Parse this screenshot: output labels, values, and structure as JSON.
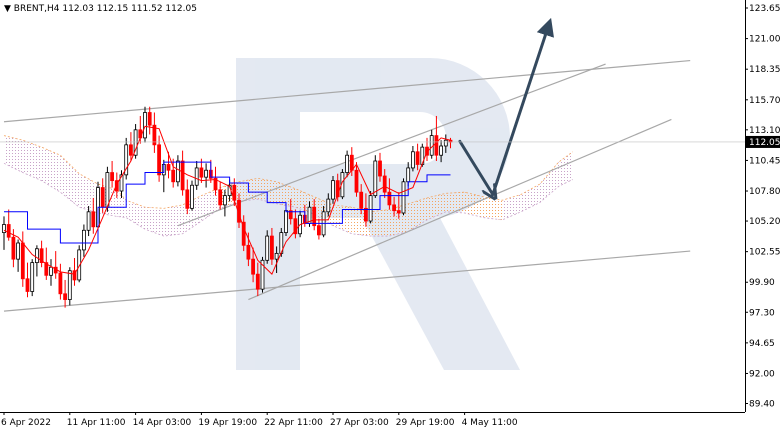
{
  "header": {
    "triangle_icon": "down-triangle-icon",
    "symbol": "BRENT,H4",
    "ohlc": "112.03 112.15 111.52 112.05"
  },
  "watermark_icon": "r-logo-watermark",
  "colors": {
    "bull": "#000000",
    "bear": "#ff0000",
    "tenkan": "#ff0000",
    "kijun": "#0000ff",
    "cloud_a": "#f4a460",
    "cloud_b": "#c8a2c8",
    "channel": "#a8a8a8",
    "arrow": "#34495e",
    "price_tag_bg": "#000000",
    "price_tag_text": "#ffffff"
  },
  "chart_data": {
    "type": "candlestick",
    "symbol": "BRENT",
    "timeframe": "H4",
    "ylim": [
      89.4,
      124.5
    ],
    "y_ticks": [
      "123.65",
      "121.00",
      "118.35",
      "115.70",
      "113.10",
      "110.45",
      "107.80",
      "105.20",
      "102.55",
      "99.90",
      "97.30",
      "94.65",
      "92.00",
      "89.40"
    ],
    "x_ticks": [
      "6 Apr 2022",
      "11 Apr 11:00",
      "14 Apr 03:00",
      "19 Apr 19:00",
      "22 Apr 11:00",
      "27 Apr 03:00",
      "29 Apr 19:00",
      "4 May 11:00"
    ],
    "x_tick_index": [
      0,
      14,
      28,
      42,
      56,
      70,
      84,
      98
    ],
    "last_price": "112.05",
    "candles": [
      [
        104.2,
        105.6,
        102.7,
        104.9
      ],
      [
        104.9,
        106.2,
        103.5,
        103.8
      ],
      [
        103.8,
        104.5,
        101.2,
        101.9
      ],
      [
        101.9,
        103.6,
        100.8,
        103.3
      ],
      [
        103.3,
        104.3,
        99.5,
        100.2
      ],
      [
        100.2,
        101.6,
        98.6,
        99.1
      ],
      [
        99.1,
        101.9,
        98.7,
        101.6
      ],
      [
        101.6,
        103.1,
        100.4,
        102.8
      ],
      [
        102.8,
        103.5,
        101.2,
        101.6
      ],
      [
        101.6,
        102.9,
        100.1,
        100.5
      ],
      [
        100.5,
        101.9,
        99.6,
        101.2
      ],
      [
        101.2,
        102.6,
        100.2,
        100.7
      ],
      [
        100.7,
        101.5,
        98.4,
        98.9
      ],
      [
        98.9,
        100.1,
        97.7,
        98.4
      ],
      [
        98.4,
        101.2,
        97.9,
        100.9
      ],
      [
        100.9,
        102.0,
        99.6,
        100.1
      ],
      [
        100.1,
        103.1,
        99.9,
        102.7
      ],
      [
        102.7,
        104.9,
        102.1,
        104.4
      ],
      [
        104.4,
        106.5,
        103.9,
        106.0
      ],
      [
        106.0,
        107.2,
        104.1,
        104.7
      ],
      [
        104.7,
        108.6,
        104.5,
        108.1
      ],
      [
        108.1,
        108.9,
        105.9,
        106.4
      ],
      [
        106.4,
        109.9,
        106.0,
        109.4
      ],
      [
        109.4,
        110.4,
        108.1,
        108.7
      ],
      [
        108.7,
        109.4,
        107.2,
        107.8
      ],
      [
        107.8,
        109.6,
        107.2,
        109.2
      ],
      [
        109.2,
        112.4,
        108.8,
        111.8
      ],
      [
        111.8,
        112.9,
        110.4,
        110.9
      ],
      [
        110.9,
        113.6,
        110.6,
        113.1
      ],
      [
        113.1,
        114.3,
        111.9,
        112.4
      ],
      [
        112.4,
        115.1,
        112.0,
        114.6
      ],
      [
        114.6,
        115.1,
        112.7,
        113.5
      ],
      [
        113.5,
        114.6,
        111.1,
        111.8
      ],
      [
        111.8,
        112.6,
        108.6,
        109.2
      ],
      [
        109.2,
        110.5,
        107.7,
        110.1
      ],
      [
        110.1,
        111.2,
        108.9,
        109.6
      ],
      [
        109.6,
        110.6,
        108.1,
        108.6
      ],
      [
        108.6,
        110.9,
        108.2,
        110.4
      ],
      [
        110.4,
        111.3,
        107.4,
        107.9
      ],
      [
        107.9,
        108.8,
        105.8,
        106.3
      ],
      [
        106.3,
        108.7,
        106.1,
        108.3
      ],
      [
        108.3,
        110.4,
        107.9,
        109.8
      ],
      [
        109.8,
        110.6,
        108.5,
        109.0
      ],
      [
        109.0,
        110.2,
        108.1,
        109.6
      ],
      [
        109.6,
        110.5,
        108.5,
        108.9
      ],
      [
        108.9,
        109.9,
        107.4,
        107.9
      ],
      [
        107.9,
        108.6,
        106.2,
        106.6
      ],
      [
        106.6,
        107.9,
        105.6,
        107.4
      ],
      [
        107.4,
        108.8,
        106.9,
        108.3
      ],
      [
        108.3,
        108.9,
        106.5,
        107.0
      ],
      [
        107.0,
        107.6,
        104.6,
        105.1
      ],
      [
        105.1,
        105.7,
        102.6,
        103.1
      ],
      [
        103.1,
        104.2,
        101.3,
        101.9
      ],
      [
        101.9,
        102.9,
        99.9,
        100.6
      ],
      [
        100.6,
        101.6,
        98.7,
        99.3
      ],
      [
        99.3,
        102.1,
        99.0,
        101.8
      ],
      [
        101.8,
        104.4,
        101.5,
        103.9
      ],
      [
        103.9,
        104.6,
        101.4,
        101.9
      ],
      [
        101.9,
        103.0,
        100.7,
        102.4
      ],
      [
        102.4,
        104.6,
        102.1,
        104.2
      ],
      [
        104.2,
        106.6,
        103.9,
        106.1
      ],
      [
        106.1,
        107.1,
        104.9,
        105.4
      ],
      [
        105.4,
        106.2,
        103.7,
        104.1
      ],
      [
        104.1,
        106.1,
        103.8,
        105.7
      ],
      [
        105.7,
        106.6,
        104.7,
        105.0
      ],
      [
        105.0,
        106.9,
        104.7,
        106.4
      ],
      [
        106.4,
        107.1,
        104.4,
        104.8
      ],
      [
        104.8,
        105.4,
        103.6,
        104.0
      ],
      [
        104.0,
        106.5,
        103.8,
        106.0
      ],
      [
        106.0,
        107.6,
        105.6,
        107.1
      ],
      [
        107.1,
        109.1,
        106.7,
        108.7
      ],
      [
        108.7,
        109.3,
        106.9,
        107.3
      ],
      [
        107.3,
        109.7,
        107.1,
        109.4
      ],
      [
        109.4,
        111.3,
        109.0,
        110.9
      ],
      [
        110.9,
        111.6,
        109.1,
        109.6
      ],
      [
        109.6,
        110.3,
        107.3,
        107.7
      ],
      [
        107.7,
        108.4,
        105.8,
        106.3
      ],
      [
        106.3,
        107.6,
        104.7,
        105.2
      ],
      [
        105.2,
        107.8,
        105.0,
        107.4
      ],
      [
        107.4,
        110.9,
        107.2,
        110.4
      ],
      [
        110.4,
        111.1,
        108.6,
        109.1
      ],
      [
        109.1,
        109.7,
        107.2,
        107.7
      ],
      [
        107.7,
        108.9,
        106.2,
        106.6
      ],
      [
        106.6,
        107.3,
        105.6,
        106.1
      ],
      [
        106.1,
        107.7,
        105.4,
        105.9
      ],
      [
        105.9,
        108.9,
        105.7,
        108.6
      ],
      [
        108.6,
        110.3,
        108.2,
        109.8
      ],
      [
        109.8,
        111.7,
        109.5,
        111.2
      ],
      [
        111.2,
        111.9,
        109.6,
        110.1
      ],
      [
        110.1,
        111.9,
        109.9,
        111.6
      ],
      [
        111.6,
        112.4,
        110.4,
        110.9
      ],
      [
        110.9,
        113.1,
        110.6,
        112.6
      ],
      [
        112.6,
        114.3,
        110.4,
        110.9
      ],
      [
        110.9,
        112.2,
        110.3,
        111.7
      ],
      [
        111.7,
        112.7,
        111.1,
        112.2
      ],
      [
        112.2,
        112.4,
        111.5,
        112.05
      ]
    ],
    "tenkan": [
      [
        0,
        104.4
      ],
      [
        3,
        103.8
      ],
      [
        6,
        102.3
      ],
      [
        9,
        101.5
      ],
      [
        12,
        100.8
      ],
      [
        15,
        100.6
      ],
      [
        18,
        102.7
      ],
      [
        21,
        105.5
      ],
      [
        24,
        108.4
      ],
      [
        27,
        110.4
      ],
      [
        30,
        113.4
      ],
      [
        33,
        113.2
      ],
      [
        36,
        109.9
      ],
      [
        39,
        109.2
      ],
      [
        42,
        108.7
      ],
      [
        45,
        108.8
      ],
      [
        48,
        108.2
      ],
      [
        51,
        104.6
      ],
      [
        54,
        101.8
      ],
      [
        57,
        100.6
      ],
      [
        60,
        103.4
      ],
      [
        63,
        104.9
      ],
      [
        66,
        105.3
      ],
      [
        69,
        105.3
      ],
      [
        72,
        108.6
      ],
      [
        75,
        110.1
      ],
      [
        78,
        107.5
      ],
      [
        81,
        108.2
      ],
      [
        84,
        107.6
      ],
      [
        87,
        108.1
      ],
      [
        90,
        111.2
      ],
      [
        93,
        112.4
      ],
      [
        95,
        112.2
      ]
    ],
    "kijun": [
      [
        0,
        106.0
      ],
      [
        5,
        106.0
      ],
      [
        5,
        104.5
      ],
      [
        12,
        104.5
      ],
      [
        12,
        103.3
      ],
      [
        20,
        103.3
      ],
      [
        20,
        106.4
      ],
      [
        26,
        106.4
      ],
      [
        26,
        108.4
      ],
      [
        30,
        108.4
      ],
      [
        30,
        109.4
      ],
      [
        34,
        109.4
      ],
      [
        34,
        110.3
      ],
      [
        44,
        110.3
      ],
      [
        44,
        109.0
      ],
      [
        48,
        109.0
      ],
      [
        48,
        108.5
      ],
      [
        52,
        108.5
      ],
      [
        52,
        107.7
      ],
      [
        56,
        107.7
      ],
      [
        56,
        106.8
      ],
      [
        60,
        106.8
      ],
      [
        60,
        106.0
      ],
      [
        64,
        106.0
      ],
      [
        64,
        105.0
      ],
      [
        72,
        105.0
      ],
      [
        72,
        106.2
      ],
      [
        80,
        106.2
      ],
      [
        80,
        107.4
      ],
      [
        86,
        107.4
      ],
      [
        86,
        108.6
      ],
      [
        90,
        108.6
      ],
      [
        90,
        109.2
      ],
      [
        95,
        109.2
      ]
    ],
    "cloud": [
      [
        0,
        110.2,
        112.6
      ],
      [
        4,
        109.4,
        112.2
      ],
      [
        8,
        108.7,
        111.6
      ],
      [
        12,
        107.7,
        110.9
      ],
      [
        16,
        106.4,
        109.3
      ],
      [
        20,
        105.9,
        108.4
      ],
      [
        24,
        105.6,
        107.9
      ],
      [
        26,
        105.5,
        107.0
      ],
      [
        30,
        104.5,
        106.4
      ],
      [
        34,
        103.9,
        106.3
      ],
      [
        38,
        104.1,
        106.6
      ],
      [
        42,
        105.2,
        107.4
      ],
      [
        46,
        106.3,
        108.1
      ],
      [
        50,
        106.9,
        108.6
      ],
      [
        54,
        107.1,
        108.9
      ],
      [
        58,
        106.7,
        108.6
      ],
      [
        62,
        106.4,
        108.0
      ],
      [
        66,
        105.8,
        107.3
      ],
      [
        70,
        104.8,
        106.6
      ],
      [
        74,
        104.1,
        106.4
      ],
      [
        78,
        103.9,
        106.0
      ],
      [
        82,
        103.9,
        106.2
      ],
      [
        86,
        104.3,
        106.7
      ],
      [
        90,
        105.3,
        107.2
      ],
      [
        94,
        106.0,
        107.6
      ],
      [
        98,
        105.9,
        107.7
      ],
      [
        102,
        105.5,
        107.3
      ],
      [
        106,
        105.3,
        107.0
      ],
      [
        110,
        106.0,
        107.5
      ],
      [
        114,
        106.8,
        108.4
      ],
      [
        118,
        108.2,
        110.3
      ],
      [
        121,
        108.8,
        111.2
      ]
    ],
    "trendlines": [
      {
        "name": "upper-channel",
        "p1": [
          0,
          113.8
        ],
        "p2": [
          146,
          119.1
        ]
      },
      {
        "name": "lower-support",
        "p1": [
          0,
          97.4
        ],
        "p2": [
          146,
          102.6
        ]
      },
      {
        "name": "rising-channel-top",
        "p1": [
          37,
          104.8
        ],
        "p2": [
          128,
          118.8
        ]
      },
      {
        "name": "rising-channel-bottom",
        "p1": [
          52,
          98.4
        ],
        "p2": [
          142,
          114.0
        ]
      }
    ],
    "arrows": [
      {
        "from": [
          97,
          112.1
        ],
        "to": [
          104,
          107.5
        ],
        "head": false
      },
      {
        "from": [
          104,
          107.5
        ],
        "to": [
          116,
          122.3
        ],
        "head": true
      }
    ]
  }
}
